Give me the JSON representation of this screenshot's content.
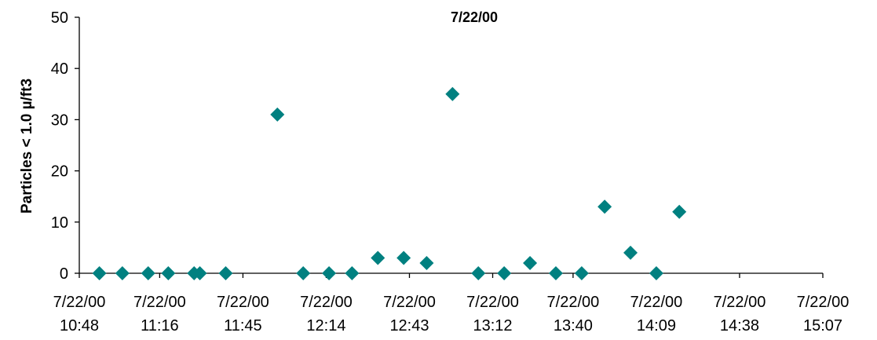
{
  "chart_data": {
    "type": "scatter",
    "title": "7/22/00",
    "xlabel": "",
    "ylabel": "Particles < 1.0 µ/ft3",
    "ylim": [
      0,
      50
    ],
    "yticks": [
      0,
      10,
      20,
      30,
      40,
      50
    ],
    "xlim_minutes": [
      648,
      907
    ],
    "xticks": [
      {
        "date": "7/22/00",
        "time": "10:48",
        "minutes": 648
      },
      {
        "date": "7/22/00",
        "time": "11:16",
        "minutes": 676
      },
      {
        "date": "7/22/00",
        "time": "11:45",
        "minutes": 705
      },
      {
        "date": "7/22/00",
        "time": "12:14",
        "minutes": 734
      },
      {
        "date": "7/22/00",
        "time": "12:43",
        "minutes": 763
      },
      {
        "date": "7/22/00",
        "time": "13:12",
        "minutes": 792
      },
      {
        "date": "7/22/00",
        "time": "13:40",
        "minutes": 820
      },
      {
        "date": "7/22/00",
        "time": "14:09",
        "minutes": 849
      },
      {
        "date": "7/22/00",
        "time": "14:38",
        "minutes": 878
      },
      {
        "date": "7/22/00",
        "time": "15:07",
        "minutes": 907
      }
    ],
    "marker_color": "#008080",
    "marker": "diamond",
    "grid": false,
    "points": [
      {
        "x": "10:55",
        "y": 0
      },
      {
        "x": "11:03",
        "y": 0
      },
      {
        "x": "11:12",
        "y": 0
      },
      {
        "x": "11:19",
        "y": 0
      },
      {
        "x": "11:28",
        "y": 0
      },
      {
        "x": "11:30",
        "y": 0
      },
      {
        "x": "11:39",
        "y": 0
      },
      {
        "x": "11:57",
        "y": 31
      },
      {
        "x": "12:06",
        "y": 0
      },
      {
        "x": "12:15",
        "y": 0
      },
      {
        "x": "12:23",
        "y": 0
      },
      {
        "x": "12:32",
        "y": 3
      },
      {
        "x": "12:41",
        "y": 3
      },
      {
        "x": "12:49",
        "y": 2
      },
      {
        "x": "12:58",
        "y": 35
      },
      {
        "x": "13:07",
        "y": 0
      },
      {
        "x": "13:16",
        "y": 0
      },
      {
        "x": "13:25",
        "y": 2
      },
      {
        "x": "13:34",
        "y": 0
      },
      {
        "x": "13:43",
        "y": 0
      },
      {
        "x": "13:51",
        "y": 13
      },
      {
        "x": "14:00",
        "y": 4
      },
      {
        "x": "14:09",
        "y": 0
      },
      {
        "x": "14:17",
        "y": 12
      }
    ]
  }
}
